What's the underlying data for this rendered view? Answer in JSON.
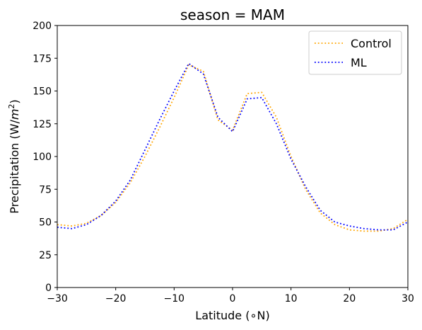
{
  "chart_data": {
    "type": "line",
    "title": "season = MAM",
    "xlabel": "Latitude (∘N)",
    "ylabel": "Precipitation (W/m²)",
    "xlim": [
      -30,
      30
    ],
    "ylim": [
      0,
      200
    ],
    "xticks": [
      -30,
      -20,
      -10,
      0,
      10,
      20,
      30
    ],
    "xtick_labels": [
      "−30",
      "−20",
      "−10",
      "0",
      "10",
      "20",
      "30"
    ],
    "yticks": [
      0,
      25,
      50,
      75,
      100,
      125,
      150,
      175,
      200
    ],
    "ytick_labels": [
      "0",
      "25",
      "50",
      "75",
      "100",
      "125",
      "150",
      "175",
      "200"
    ],
    "grid": false,
    "legend_position": "top-right",
    "series": [
      {
        "name": "Control",
        "color": "#ffa500",
        "style": "dotted",
        "x": [
          -30,
          -27.5,
          -25,
          -22.5,
          -20,
          -17.5,
          -15,
          -12.5,
          -10,
          -7.5,
          -5,
          -2.5,
          0,
          2.5,
          5,
          7.5,
          10,
          12.5,
          15,
          17.5,
          20,
          22.5,
          25,
          27.5,
          30
        ],
        "y": [
          48,
          47,
          49,
          55,
          65,
          80,
          100,
          122,
          145,
          170,
          165,
          128,
          120,
          148,
          149,
          130,
          100,
          75,
          57,
          48,
          44,
          43,
          43,
          45,
          52
        ]
      },
      {
        "name": "ML",
        "color": "#0000ff",
        "style": "dotted",
        "x": [
          -30,
          -27.5,
          -25,
          -22.5,
          -20,
          -17.5,
          -15,
          -12.5,
          -10,
          -7.5,
          -5,
          -2.5,
          0,
          2.5,
          5,
          7.5,
          10,
          12.5,
          15,
          17.5,
          20,
          22.5,
          25,
          27.5,
          30
        ],
        "y": [
          46,
          45,
          48,
          55,
          66,
          82,
          105,
          128,
          150,
          171,
          163,
          130,
          119,
          144,
          145,
          125,
          98,
          77,
          59,
          50,
          47,
          45,
          44,
          44,
          50
        ]
      }
    ]
  }
}
